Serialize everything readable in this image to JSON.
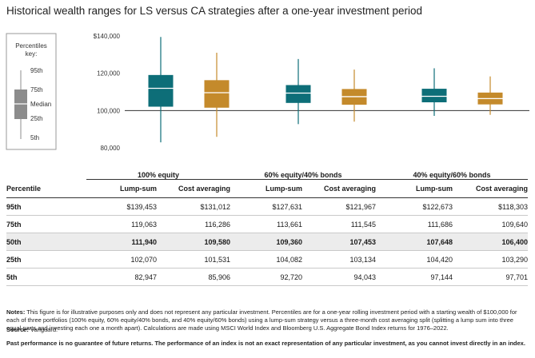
{
  "title": "Historical wealth ranges for LS versus CA strategies after a one-year investment period",
  "legend": {
    "title_line1": "Percentiles",
    "title_line2": "key:",
    "labels": [
      "95th",
      "75th",
      "Median",
      "25th",
      "5th"
    ]
  },
  "colors": {
    "lump_sum": "#0d6e78",
    "cost_averaging": "#c48a2b",
    "axis": "#333333"
  },
  "chart_data": {
    "type": "boxplot",
    "ylim": [
      80000,
      140000
    ],
    "y_ticks": [
      "$140,000",
      "120,000",
      "100,000",
      "80,000"
    ],
    "y_tick_values": [
      140000,
      120000,
      100000,
      80000
    ],
    "reference_line": 100000,
    "groups": [
      {
        "name": "100% equity",
        "lump_sum": {
          "p5": 82947,
          "p25": 102070,
          "p50": 111940,
          "p75": 119063,
          "p95": 139453
        },
        "cost_averaging": {
          "p5": 85906,
          "p25": 101531,
          "p50": 109580,
          "p75": 116286,
          "p95": 131012
        }
      },
      {
        "name": "60% equity/40% bonds",
        "lump_sum": {
          "p5": 92720,
          "p25": 104082,
          "p50": 109360,
          "p75": 113661,
          "p95": 127631
        },
        "cost_averaging": {
          "p5": 94043,
          "p25": 103134,
          "p50": 107453,
          "p75": 111545,
          "p95": 121967
        }
      },
      {
        "name": "40% equity/60% bonds",
        "lump_sum": {
          "p5": 97144,
          "p25": 104420,
          "p50": 107648,
          "p75": 111686,
          "p95": 122673
        },
        "cost_averaging": {
          "p5": 97701,
          "p25": 103290,
          "p50": 106400,
          "p75": 109640,
          "p95": 118303
        }
      }
    ]
  },
  "table": {
    "groups": [
      "100% equity",
      "60% equity/40% bonds",
      "40% equity/60% bonds"
    ],
    "percentile_header": "Percentile",
    "col_headers": [
      "Lump-sum",
      "Cost averaging",
      "Lump-sum",
      "Cost averaging",
      "Lump-sum",
      "Cost averaging"
    ],
    "rows": [
      {
        "label": "95th",
        "values": [
          "$139,453",
          "$131,012",
          "$127,631",
          "$121,967",
          "$122,673",
          "$118,303"
        ]
      },
      {
        "label": "75th",
        "values": [
          "119,063",
          "116,286",
          "113,661",
          "111,545",
          "111,686",
          "109,640"
        ]
      },
      {
        "label": "50th",
        "values": [
          "111,940",
          "109,580",
          "109,360",
          "107,453",
          "107,648",
          "106,400"
        ]
      },
      {
        "label": "25th",
        "values": [
          "102,070",
          "101,531",
          "104,082",
          "103,134",
          "104,420",
          "103,290"
        ]
      },
      {
        "label": "5th",
        "values": [
          "82,947",
          "85,906",
          "92,720",
          "94,043",
          "97,144",
          "97,701"
        ]
      }
    ]
  },
  "notes": {
    "notes_label": "Notes:",
    "notes_text": "This figure is for illustrative purposes only and does not represent any particular investment. Percentiles are for a one-year rolling investment period with a starting wealth of $100,000 for each of three portfolios (100% equity, 60% equity/40% bonds, and 40% equity/60% bonds) using a lump-sum strategy versus a three-month cost averaging split (splitting a lump sum into three equal parts and investing each one a month apart). Calculations are made using MSCI World Index and Bloomberg U.S. Aggregate Bond Index returns for 1976–2022.",
    "source_label": "Source:",
    "source_text": "Vanguard.",
    "disclaimer": "Past performance is no guarantee of future returns. The performance of an index is not an exact representation of any particular investment, as you cannot invest directly in an index."
  }
}
